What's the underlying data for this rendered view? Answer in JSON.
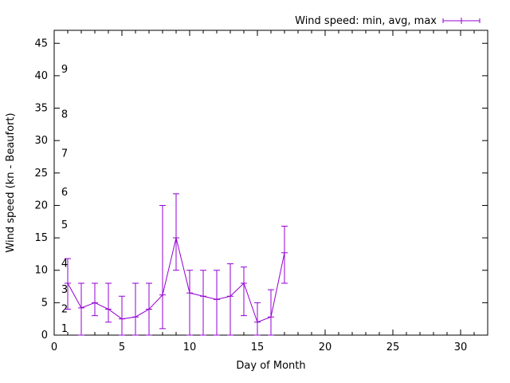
{
  "figure": {
    "background": "#ffffff",
    "accent_color": "#9400d3",
    "legend_label": "Wind speed: min, avg, max",
    "xlabel": "Day of Month",
    "ylabel": "Wind speed (kn - Beaufort)"
  },
  "chart_data": {
    "type": "line",
    "title": "",
    "xlabel": "Day of Month",
    "ylabel": "Wind speed (kn - Beaufort)",
    "legend": "Wind speed: min, avg, max",
    "legend_position": "top-right",
    "grid": false,
    "marker": "plus",
    "errorbars": true,
    "xlim": [
      0,
      32
    ],
    "ylim": [
      0,
      47
    ],
    "x_ticks": [
      0,
      5,
      10,
      15,
      20,
      25,
      30
    ],
    "y_ticks_knots": [
      0,
      5,
      10,
      15,
      20,
      25,
      30,
      35,
      40,
      45
    ],
    "beaufort_ticks": [
      {
        "bft": "1",
        "kn": 1
      },
      {
        "bft": "2",
        "kn": 4
      },
      {
        "bft": "3",
        "kn": 7
      },
      {
        "bft": "4",
        "kn": 11
      },
      {
        "bft": "5",
        "kn": 17
      },
      {
        "bft": "6",
        "kn": 22
      },
      {
        "bft": "7",
        "kn": 28
      },
      {
        "bft": "8",
        "kn": 34
      },
      {
        "bft": "9",
        "kn": 41
      }
    ],
    "x": [
      1,
      2,
      3,
      4,
      5,
      6,
      7,
      8,
      9,
      10,
      11,
      12,
      13,
      14,
      15,
      16,
      17
    ],
    "series": [
      {
        "name": "avg",
        "values": [
          8,
          4.2,
          5,
          4,
          2.5,
          2.8,
          4,
          6.2,
          15,
          6.5,
          6,
          5.5,
          6,
          8,
          2,
          2.8,
          12.7
        ]
      },
      {
        "name": "min",
        "values": [
          4,
          0,
          3,
          2,
          0,
          0,
          0,
          1,
          10,
          0,
          0,
          0,
          0,
          3,
          0,
          0,
          8
        ]
      },
      {
        "name": "max",
        "values": [
          11.8,
          8,
          8,
          8,
          6,
          8,
          8,
          20,
          21.8,
          10,
          10,
          10,
          11,
          10.5,
          5,
          7,
          16.8
        ]
      }
    ]
  }
}
